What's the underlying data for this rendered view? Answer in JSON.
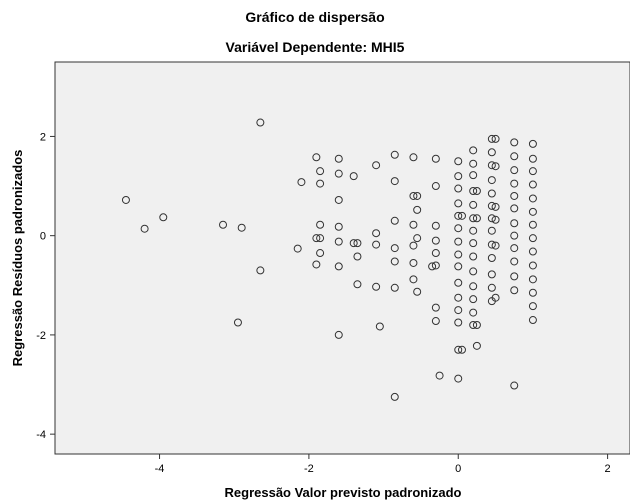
{
  "chart_data": {
    "type": "scatter",
    "title": "Gráfico de dispersão",
    "subtitle": "Variável Dependente: MHI5",
    "xlabel": "Regressão Valor previsto padronizado",
    "ylabel": "Regressão Resíduos padronizados",
    "xlim": [
      -5.4,
      2.3
    ],
    "ylim": [
      -4.4,
      3.5
    ],
    "xticks": [
      -4,
      -2,
      0,
      2
    ],
    "xtick_labels": [
      "-4",
      "-2",
      "0",
      "2"
    ],
    "yticks": [
      -4,
      -2,
      0,
      2
    ],
    "ytick_labels": [
      "-4",
      "-2",
      "0",
      "2"
    ],
    "grid": false,
    "colors": {
      "plot_bg": "#f0f0f0",
      "marker": "#333333"
    },
    "points": [
      [
        -4.45,
        0.72
      ],
      [
        -4.2,
        0.14
      ],
      [
        -3.95,
        0.37
      ],
      [
        -3.15,
        0.22
      ],
      [
        -2.9,
        0.16
      ],
      [
        -2.95,
        -1.75
      ],
      [
        -2.65,
        2.28
      ],
      [
        -2.65,
        -0.7
      ],
      [
        -2.1,
        1.08
      ],
      [
        -2.15,
        -0.26
      ],
      [
        -1.9,
        1.58
      ],
      [
        -1.85,
        1.3
      ],
      [
        -1.85,
        1.05
      ],
      [
        -1.85,
        0.22
      ],
      [
        -1.9,
        -0.05
      ],
      [
        -1.85,
        -0.05
      ],
      [
        -1.85,
        -0.35
      ],
      [
        -1.9,
        -0.58
      ],
      [
        -1.6,
        1.55
      ],
      [
        -1.6,
        1.25
      ],
      [
        -1.6,
        0.72
      ],
      [
        -1.6,
        0.18
      ],
      [
        -1.6,
        -0.12
      ],
      [
        -1.6,
        -0.62
      ],
      [
        -1.6,
        -2.0
      ],
      [
        -1.4,
        1.2
      ],
      [
        -1.35,
        -0.15
      ],
      [
        -1.4,
        -0.15
      ],
      [
        -1.35,
        -0.42
      ],
      [
        -1.35,
        -0.98
      ],
      [
        -1.1,
        1.42
      ],
      [
        -1.1,
        0.05
      ],
      [
        -1.1,
        -0.18
      ],
      [
        -1.1,
        -1.03
      ],
      [
        -1.05,
        -1.83
      ],
      [
        -0.85,
        1.63
      ],
      [
        -0.85,
        1.1
      ],
      [
        -0.85,
        0.3
      ],
      [
        -0.85,
        -0.25
      ],
      [
        -0.85,
        -0.52
      ],
      [
        -0.85,
        -1.05
      ],
      [
        -0.85,
        -3.25
      ],
      [
        -0.6,
        1.58
      ],
      [
        -0.6,
        0.8
      ],
      [
        -0.55,
        0.8
      ],
      [
        -0.55,
        0.52
      ],
      [
        -0.6,
        0.22
      ],
      [
        -0.55,
        -0.05
      ],
      [
        -0.6,
        -0.2
      ],
      [
        -0.6,
        -0.55
      ],
      [
        -0.6,
        -0.88
      ],
      [
        -0.55,
        -1.13
      ],
      [
        -0.3,
        1.55
      ],
      [
        -0.3,
        1.0
      ],
      [
        -0.3,
        0.2
      ],
      [
        -0.3,
        -0.1
      ],
      [
        -0.3,
        -0.35
      ],
      [
        -0.3,
        -0.6
      ],
      [
        -0.3,
        -1.45
      ],
      [
        -0.3,
        -1.72
      ],
      [
        -0.25,
        -2.82
      ],
      [
        -0.35,
        -0.62
      ],
      [
        0,
        1.5
      ],
      [
        0,
        1.2
      ],
      [
        0,
        0.95
      ],
      [
        0,
        0.65
      ],
      [
        0,
        0.4
      ],
      [
        0,
        0.15
      ],
      [
        0,
        -0.12
      ],
      [
        0,
        -0.38
      ],
      [
        0,
        -0.62
      ],
      [
        0,
        -0.95
      ],
      [
        0,
        -1.25
      ],
      [
        0,
        -1.5
      ],
      [
        0,
        -1.75
      ],
      [
        0,
        -2.3
      ],
      [
        0.05,
        -2.3
      ],
      [
        0,
        -2.88
      ],
      [
        0.05,
        0.4
      ],
      [
        0.2,
        1.72
      ],
      [
        0.2,
        1.45
      ],
      [
        0.2,
        1.22
      ],
      [
        0.2,
        0.9
      ],
      [
        0.25,
        0.9
      ],
      [
        0.2,
        0.62
      ],
      [
        0.2,
        0.35
      ],
      [
        0.25,
        0.35
      ],
      [
        0.2,
        0.1
      ],
      [
        0.2,
        -0.15
      ],
      [
        0.2,
        -0.42
      ],
      [
        0.2,
        -0.72
      ],
      [
        0.2,
        -1.02
      ],
      [
        0.2,
        -1.28
      ],
      [
        0.2,
        -1.55
      ],
      [
        0.2,
        -1.8
      ],
      [
        0.25,
        -1.8
      ],
      [
        0.25,
        -2.22
      ],
      [
        0.45,
        1.95
      ],
      [
        0.45,
        1.68
      ],
      [
        0.45,
        1.42
      ],
      [
        0.45,
        1.12
      ],
      [
        0.45,
        0.85
      ],
      [
        0.45,
        0.6
      ],
      [
        0.45,
        0.35
      ],
      [
        0.45,
        0.1
      ],
      [
        0.45,
        -0.18
      ],
      [
        0.45,
        -0.45
      ],
      [
        0.45,
        -0.78
      ],
      [
        0.45,
        -1.05
      ],
      [
        0.45,
        -1.32
      ],
      [
        0.5,
        1.95
      ],
      [
        0.5,
        1.4
      ],
      [
        0.5,
        0.58
      ],
      [
        0.5,
        0.32
      ],
      [
        0.5,
        -0.2
      ],
      [
        0.5,
        -1.25
      ],
      [
        0.75,
        1.88
      ],
      [
        0.75,
        1.6
      ],
      [
        0.75,
        1.32
      ],
      [
        0.75,
        1.05
      ],
      [
        0.75,
        0.8
      ],
      [
        0.75,
        0.55
      ],
      [
        0.75,
        0.25
      ],
      [
        0.75,
        0.0
      ],
      [
        0.75,
        -0.25
      ],
      [
        0.75,
        -0.52
      ],
      [
        0.75,
        -0.82
      ],
      [
        0.75,
        -1.1
      ],
      [
        0.75,
        -3.02
      ],
      [
        1.0,
        1.85
      ],
      [
        1.0,
        1.55
      ],
      [
        1.0,
        1.3
      ],
      [
        1.0,
        1.03
      ],
      [
        1.0,
        0.75
      ],
      [
        1.0,
        0.48
      ],
      [
        1.0,
        0.22
      ],
      [
        1.0,
        -0.05
      ],
      [
        1.0,
        -0.32
      ],
      [
        1.0,
        -0.6
      ],
      [
        1.0,
        -0.88
      ],
      [
        1.0,
        -1.15
      ],
      [
        1.0,
        -1.42
      ],
      [
        1.0,
        -1.7
      ]
    ]
  }
}
